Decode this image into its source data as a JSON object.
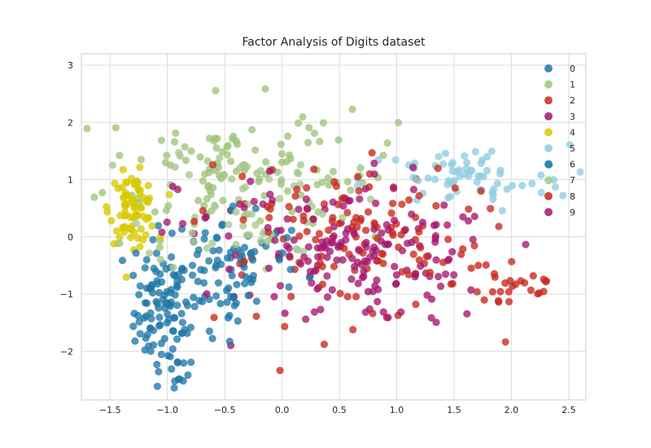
{
  "chart_data": {
    "type": "scatter",
    "title": "Factor Analysis of Digits dataset",
    "xlabel": "",
    "ylabel": "",
    "xlim": [
      -1.75,
      2.65
    ],
    "ylim": [
      -2.85,
      3.2
    ],
    "x_ticks": [
      -1.5,
      -1.0,
      -0.5,
      0.0,
      0.5,
      1.0,
      1.5,
      2.0,
      2.5
    ],
    "x_tick_labels": [
      "−1.5",
      "−1.0",
      "−0.5",
      "0.0",
      "0.5",
      "1.0",
      "1.5",
      "2.0",
      "2.5"
    ],
    "y_ticks": [
      -2,
      -1,
      0,
      1,
      2,
      3
    ],
    "y_tick_labels": [
      "−2",
      "−1",
      "0",
      "1",
      "2",
      "3"
    ],
    "grid": true,
    "legend_position": "top-right",
    "legend_labels": [
      "0",
      "1",
      "2",
      "3",
      "4",
      "5",
      "6",
      "7",
      "8",
      "9"
    ],
    "series": [
      {
        "name": "0",
        "color": "#1f77a8",
        "clusters": [
          {
            "x": -1.05,
            "y": -1.3,
            "sx": 0.12,
            "sy": 0.5,
            "n": 80
          },
          {
            "x": -0.75,
            "y": -1.0,
            "sx": 0.28,
            "sy": 0.55,
            "n": 50
          },
          {
            "x": -0.95,
            "y": -2.3,
            "sx": 0.12,
            "sy": 0.2,
            "n": 12
          }
        ]
      },
      {
        "name": "1",
        "color": "#9dc47a",
        "clusters": [
          {
            "x": -0.55,
            "y": 1.2,
            "sx": 0.5,
            "sy": 0.6,
            "n": 90
          },
          {
            "x": 0.3,
            "y": 1.3,
            "sx": 0.35,
            "sy": 0.4,
            "n": 30
          }
        ]
      },
      {
        "name": "2",
        "color": "#c8281d",
        "clusters": [
          {
            "x": 0.6,
            "y": -0.3,
            "sx": 0.6,
            "sy": 0.6,
            "n": 80
          },
          {
            "x": 2.0,
            "y": -0.8,
            "sx": 0.25,
            "sy": 0.3,
            "n": 30
          }
        ]
      },
      {
        "name": "3",
        "color": "#a4166d",
        "clusters": [
          {
            "x": 0.8,
            "y": -0.5,
            "sx": 0.55,
            "sy": 0.55,
            "n": 110
          }
        ]
      },
      {
        "name": "4",
        "color": "#d7c900",
        "clusters": [
          {
            "x": -1.3,
            "y": 0.5,
            "sx": 0.1,
            "sy": 0.3,
            "n": 80
          }
        ]
      },
      {
        "name": "5",
        "color": "#8ecde0",
        "clusters": [
          {
            "x": 1.6,
            "y": 1.0,
            "sx": 0.45,
            "sy": 0.3,
            "n": 70
          }
        ]
      },
      {
        "name": "6",
        "color": "#1f77a8",
        "clusters": [
          {
            "x": -0.4,
            "y": -0.4,
            "sx": 0.3,
            "sy": 0.5,
            "n": 60
          }
        ]
      },
      {
        "name": "7",
        "color": "#a6c890",
        "clusters": [
          {
            "x": -0.3,
            "y": 0.6,
            "sx": 0.45,
            "sy": 0.6,
            "n": 60
          }
        ]
      },
      {
        "name": "8",
        "color": "#c8281d",
        "clusters": [
          {
            "x": 0.4,
            "y": 0.3,
            "sx": 0.6,
            "sy": 0.5,
            "n": 60
          }
        ]
      },
      {
        "name": "9",
        "color": "#a4166d",
        "clusters": [
          {
            "x": 0.3,
            "y": 0.0,
            "sx": 0.6,
            "sy": 0.6,
            "n": 70
          }
        ]
      }
    ]
  }
}
